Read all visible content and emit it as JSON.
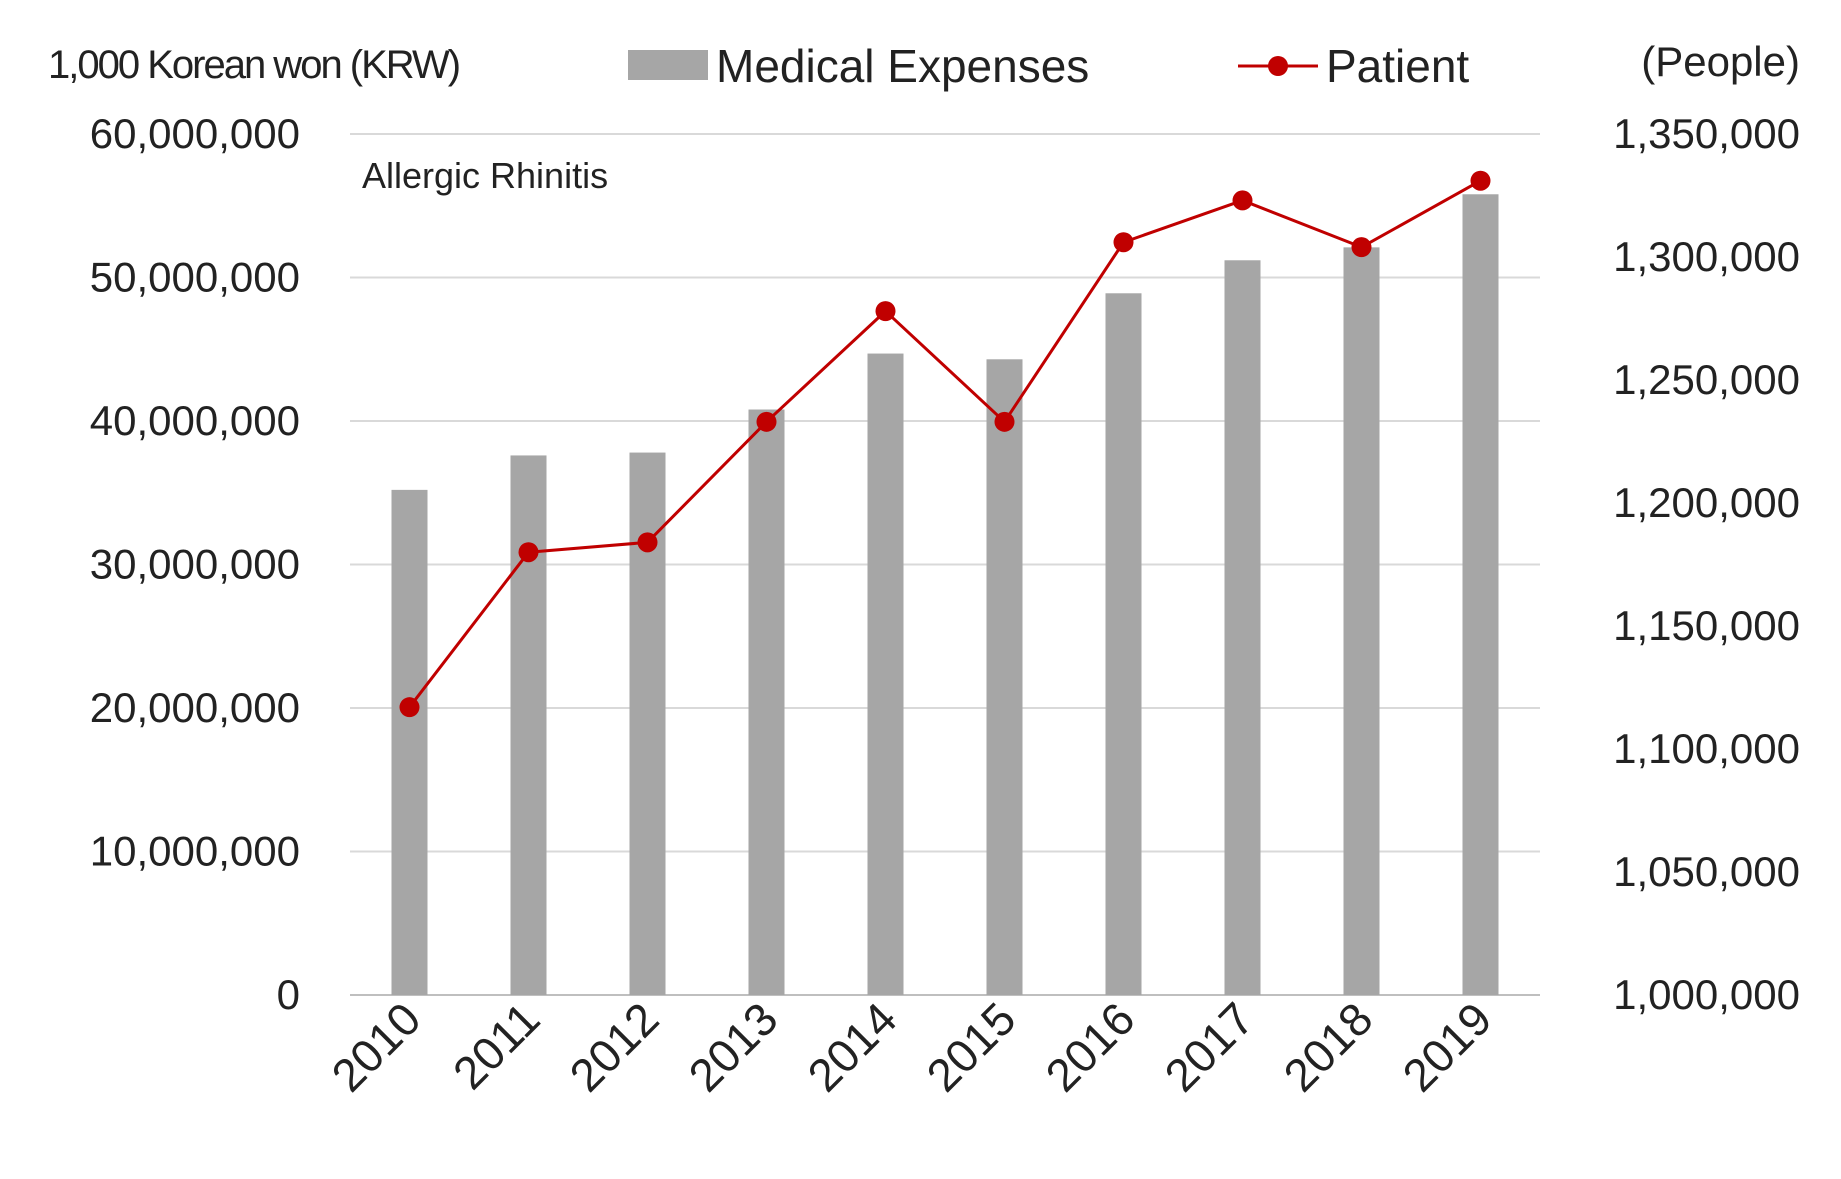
{
  "chart_data": {
    "type": "bar+line",
    "annotation": "Allergic Rhinitis",
    "categories": [
      "2010",
      "2011",
      "2012",
      "2013",
      "2014",
      "2015",
      "2016",
      "2017",
      "2018",
      "2019"
    ],
    "y_left": {
      "label": "1,000 Korean won (KRW)",
      "range": [
        0,
        60000000
      ],
      "ticks": [
        0,
        10000000,
        20000000,
        30000000,
        40000000,
        50000000,
        60000000
      ],
      "tick_labels": [
        "0",
        "10,000,000",
        "20,000,000",
        "30,000,000",
        "40,000,000",
        "50,000,000",
        "60,000,000"
      ]
    },
    "y_right": {
      "label": "(People)",
      "range": [
        1000000,
        1350000
      ],
      "ticks": [
        1000000,
        1050000,
        1100000,
        1150000,
        1200000,
        1250000,
        1300000,
        1350000
      ],
      "tick_labels": [
        "1,000,000",
        "1,050,000",
        "1,100,000",
        "1,150,000",
        "1,200,000",
        "1,250,000",
        "1,300,000",
        "1,350,000"
      ]
    },
    "series": [
      {
        "name": "Medical Expenses",
        "type": "bar",
        "axis": "left",
        "color": "#a6a6a6",
        "values": [
          35200000,
          37600000,
          37800000,
          40800000,
          44700000,
          44300000,
          48900000,
          51200000,
          52100000,
          55800000
        ]
      },
      {
        "name": "Patient",
        "type": "line",
        "axis": "right",
        "color": "#c00000",
        "values": [
          1117000,
          1180000,
          1184000,
          1233000,
          1278000,
          1233000,
          1306000,
          1323000,
          1304000,
          1331000
        ]
      }
    ],
    "legend": {
      "position": "top-center"
    },
    "grid": true
  }
}
